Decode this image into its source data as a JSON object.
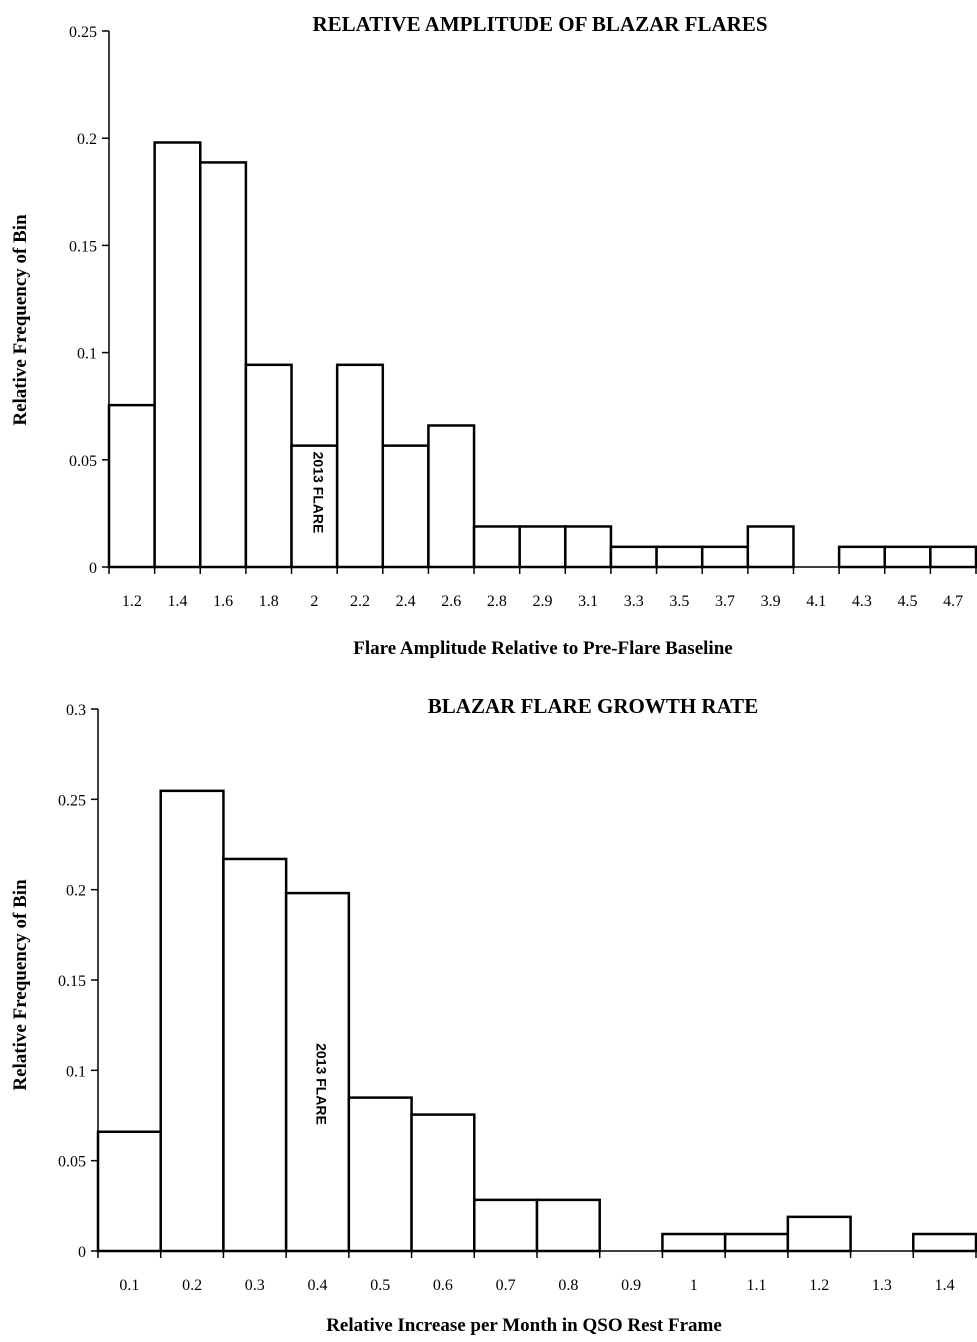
{
  "chart_data": [
    {
      "type": "bar",
      "title": "RELATIVE AMPLITUDE OF BLAZAR FLARES",
      "xlabel": "Flare Amplitude Relative to Pre-Flare Baseline",
      "ylabel": "Relative Frequency of Bin",
      "ylim": [
        0,
        0.25
      ],
      "yticks": [
        "0",
        "0.05",
        "0.1",
        "0.15",
        "0.2",
        "0.25"
      ],
      "categories": [
        "1.2",
        "1.4",
        "1.6",
        "1.8",
        "2",
        "2.2",
        "2.4",
        "2.6",
        "2.8",
        "2.9",
        "3.1",
        "3.3",
        "3.5",
        "3.7",
        "3.9",
        "4.1",
        "4.3",
        "4.5",
        "4.7"
      ],
      "values": [
        0.0755,
        0.198,
        0.1887,
        0.0943,
        0.0566,
        0.0943,
        0.0566,
        0.066,
        0.0189,
        0.0189,
        0.0189,
        0.0094,
        0.0094,
        0.0094,
        0.0189,
        0,
        0.0094,
        0.0094,
        0.0094
      ],
      "grid": false,
      "annotation": {
        "text": "2013 FLARE",
        "category": "2"
      }
    },
    {
      "type": "bar",
      "title": "BLAZAR FLARE GROWTH RATE",
      "xlabel": "Relative Increase per Month in QSO Rest Frame",
      "ylabel": "Relative Frequency of Bin",
      "ylim": [
        0,
        0.3
      ],
      "yticks": [
        "0",
        "0.05",
        "0.1",
        "0.15",
        "0.2",
        "0.25",
        "0.3"
      ],
      "categories": [
        "0.1",
        "0.2",
        "0.3",
        "0.4",
        "0.5",
        "0.6",
        "0.7",
        "0.8",
        "0.9",
        "1",
        "1.1",
        "1.2",
        "1.3",
        "1.4"
      ],
      "values": [
        0.066,
        0.2547,
        0.217,
        0.1981,
        0.0849,
        0.0755,
        0.0283,
        0.0283,
        0,
        0.0094,
        0.0094,
        0.0189,
        0,
        0.0094
      ],
      "grid": false,
      "annotation": {
        "text": "2013 FLARE",
        "category": "0.4"
      }
    }
  ]
}
